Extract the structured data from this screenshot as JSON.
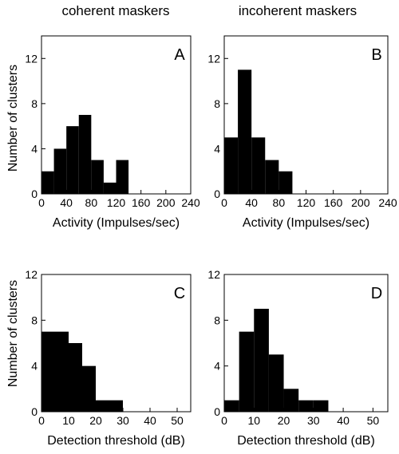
{
  "column_titles": [
    "coherent maskers",
    "incoherent maskers"
  ],
  "y_axis_label": "Number of clusters",
  "chart_data": [
    {
      "type": "bar",
      "panel": "A",
      "column": "coherent maskers",
      "xlabel": "Activity (Impulses/sec)",
      "ylabel": "Number of clusters",
      "xlim": [
        0,
        240
      ],
      "ylim": [
        0,
        14
      ],
      "xticks": [
        0,
        40,
        80,
        120,
        160,
        200,
        240
      ],
      "yticks": [
        0,
        4,
        8,
        12
      ],
      "bin_width": 20,
      "bins": [
        {
          "start": 0,
          "count": 2
        },
        {
          "start": 20,
          "count": 4
        },
        {
          "start": 40,
          "count": 6
        },
        {
          "start": 60,
          "count": 7
        },
        {
          "start": 80,
          "count": 3
        },
        {
          "start": 100,
          "count": 1
        },
        {
          "start": 120,
          "count": 3
        }
      ]
    },
    {
      "type": "bar",
      "panel": "B",
      "column": "incoherent maskers",
      "xlabel": "Activity (Impulses/sec)",
      "ylabel": "",
      "xlim": [
        0,
        240
      ],
      "ylim": [
        0,
        14
      ],
      "xticks": [
        0,
        40,
        80,
        120,
        160,
        200,
        240
      ],
      "yticks": [
        0,
        4,
        8,
        12
      ],
      "bin_width": 20,
      "bins": [
        {
          "start": 0,
          "count": 5
        },
        {
          "start": 20,
          "count": 11
        },
        {
          "start": 40,
          "count": 5
        },
        {
          "start": 60,
          "count": 3
        },
        {
          "start": 80,
          "count": 2
        }
      ]
    },
    {
      "type": "bar",
      "panel": "C",
      "column": "coherent maskers",
      "xlabel": "Detection threshold (dB)",
      "ylabel": "Number of clusters",
      "xlim": [
        0,
        55
      ],
      "ylim": [
        0,
        12
      ],
      "xticks": [
        0,
        10,
        20,
        30,
        40,
        50
      ],
      "yticks": [
        0,
        4,
        8,
        12
      ],
      "bin_width": 5,
      "bins": [
        {
          "start": 0,
          "count": 7
        },
        {
          "start": 5,
          "count": 7
        },
        {
          "start": 10,
          "count": 6
        },
        {
          "start": 15,
          "count": 4
        },
        {
          "start": 20,
          "count": 1
        },
        {
          "start": 25,
          "count": 1
        }
      ]
    },
    {
      "type": "bar",
      "panel": "D",
      "column": "incoherent maskers",
      "xlabel": "Detection threshold (dB)",
      "ylabel": "",
      "xlim": [
        0,
        55
      ],
      "ylim": [
        0,
        12
      ],
      "xticks": [
        0,
        10,
        20,
        30,
        40,
        50
      ],
      "yticks": [
        0,
        4,
        8,
        12
      ],
      "bin_width": 5,
      "bins": [
        {
          "start": 0,
          "count": 1
        },
        {
          "start": 5,
          "count": 7
        },
        {
          "start": 10,
          "count": 9
        },
        {
          "start": 15,
          "count": 5
        },
        {
          "start": 20,
          "count": 2
        },
        {
          "start": 25,
          "count": 1
        },
        {
          "start": 30,
          "count": 1
        }
      ]
    }
  ]
}
